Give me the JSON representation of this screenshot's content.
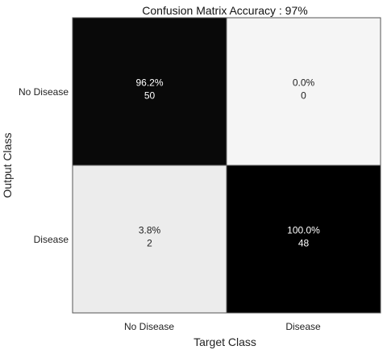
{
  "chart_data": {
    "type": "heatmap",
    "title": "Confusion Matrix Accuracy : 97%",
    "xlabel": "Target Class",
    "ylabel": "Output Class",
    "x_categories": [
      "No Disease",
      "Disease"
    ],
    "y_categories": [
      "No Disease",
      "Disease"
    ],
    "cells": [
      {
        "row": 0,
        "col": 0,
        "percent": 96.2,
        "percent_label": "96.2%",
        "count": 50,
        "count_label": "50"
      },
      {
        "row": 0,
        "col": 1,
        "percent": 0.0,
        "percent_label": "0.0%",
        "count": 0,
        "count_label": "0"
      },
      {
        "row": 1,
        "col": 0,
        "percent": 3.8,
        "percent_label": "3.8%",
        "count": 2,
        "count_label": "2"
      },
      {
        "row": 1,
        "col": 1,
        "percent": 100.0,
        "percent_label": "100.0%",
        "count": 48,
        "count_label": "48"
      }
    ],
    "colormap": {
      "low": "#ffffff",
      "high": "#000000"
    }
  }
}
